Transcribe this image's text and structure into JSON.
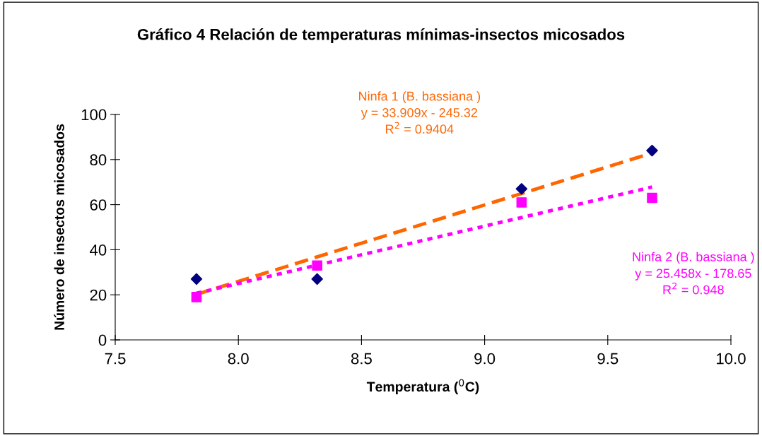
{
  "chart_data": {
    "type": "scatter",
    "title": "Gráfico 4 Relación de temperaturas mínimas-insectos micosados",
    "xlabel": "Temperatura ($^{0}$C)",
    "ylabel": "Número de insectos micosados",
    "xlim": [
      7.5,
      10.0
    ],
    "xticks": [
      {
        "value": 7.5,
        "label": "7.5"
      },
      {
        "value": 8.0,
        "label": "8.0"
      },
      {
        "value": 8.5,
        "label": "8.5"
      },
      {
        "value": 9.0,
        "label": "9.0"
      },
      {
        "value": 9.5,
        "label": "9.5"
      },
      {
        "value": 10.0,
        "label": "10.0"
      }
    ],
    "ylim": [
      0,
      100
    ],
    "yticks": [
      0,
      20,
      40,
      60,
      80,
      100
    ],
    "grid": false,
    "legend": false,
    "series": [
      {
        "marker": "diamond",
        "color": "#000080",
        "x": [
          7.83,
          8.32,
          9.15,
          9.68
        ],
        "values": [
          27,
          27,
          67,
          84
        ]
      },
      {
        "marker": "square",
        "color": "#ff00ff",
        "x": [
          7.83,
          8.32,
          9.15,
          9.68
        ],
        "values": [
          19,
          33,
          61,
          63
        ]
      },
      {
        "type": "line",
        "line_style": "dashed",
        "color": "#ff6600",
        "x": [
          7.83,
          9.68
        ],
        "values": [
          20.2,
          82.9
        ]
      },
      {
        "type": "line",
        "line_style": "dotted",
        "color": "#ff00ff",
        "x": [
          7.83,
          9.68
        ],
        "values": [
          20.7,
          67.8
        ]
      }
    ],
    "annotations": [
      "Ninfa 1 (B. bassiana )\ny = 33.909x - 245.32\nR$^{2}$ = 0.9404",
      "Ninfa 2 (B. bassiana )\ny = 25.458x - 178.65\nR$^{2}$ = 0.948"
    ]
  }
}
